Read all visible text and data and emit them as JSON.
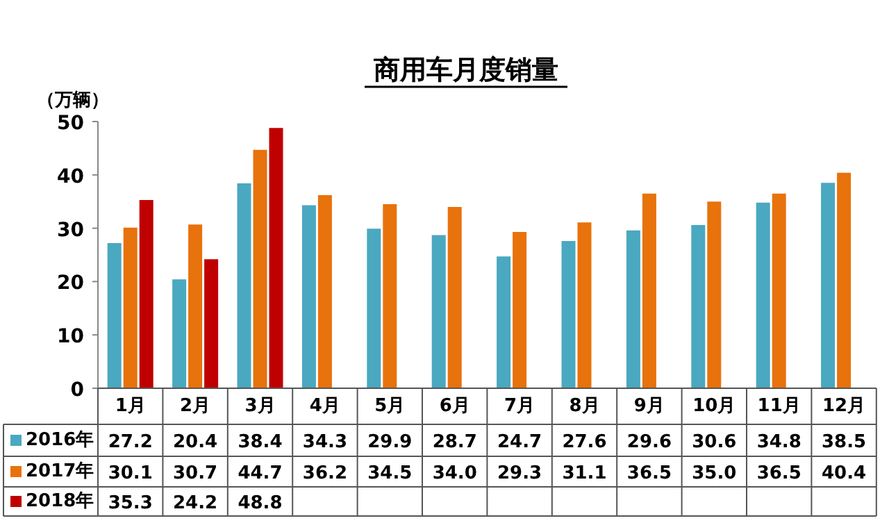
{
  "chart_data": {
    "type": "bar",
    "title": "商用车月度销量",
    "ylabel": "（万辆）",
    "categories": [
      "1月",
      "2月",
      "3月",
      "4月",
      "5月",
      "6月",
      "7月",
      "8月",
      "9月",
      "10月",
      "11月",
      "12月"
    ],
    "series": [
      {
        "name": "2016年",
        "color": "#4aa8c0",
        "values": [
          27.2,
          20.4,
          38.4,
          34.3,
          29.9,
          28.7,
          24.7,
          27.6,
          29.6,
          30.6,
          34.8,
          38.5
        ],
        "value_labels": [
          "27.2",
          "20.4",
          "38.4",
          "34.3",
          "29.9",
          "28.7",
          "24.7",
          "27.6",
          "29.6",
          "30.6",
          "34.8",
          "38.5"
        ]
      },
      {
        "name": "2017年",
        "color": "#e8720c",
        "values": [
          30.1,
          30.7,
          44.7,
          36.2,
          34.5,
          34.0,
          29.3,
          31.1,
          36.5,
          35.0,
          36.5,
          40.4
        ],
        "value_labels": [
          "30.1",
          "30.7",
          "44.7",
          "36.2",
          "34.5",
          "34.0",
          "29.3",
          "31.1",
          "36.5",
          "35.0",
          "36.5",
          "40.4"
        ]
      },
      {
        "name": "2018年",
        "color": "#c00000",
        "values": [
          35.3,
          24.2,
          48.8,
          null,
          null,
          null,
          null,
          null,
          null,
          null,
          null,
          null
        ],
        "value_labels": [
          "35.3",
          "24.2",
          "48.8",
          null,
          null,
          null,
          null,
          null,
          null,
          null,
          null,
          null
        ]
      }
    ],
    "ylim": [
      0,
      50
    ],
    "yticks": [
      0,
      10,
      20,
      30,
      40,
      50
    ],
    "grid": false,
    "legend": "bottom left"
  }
}
